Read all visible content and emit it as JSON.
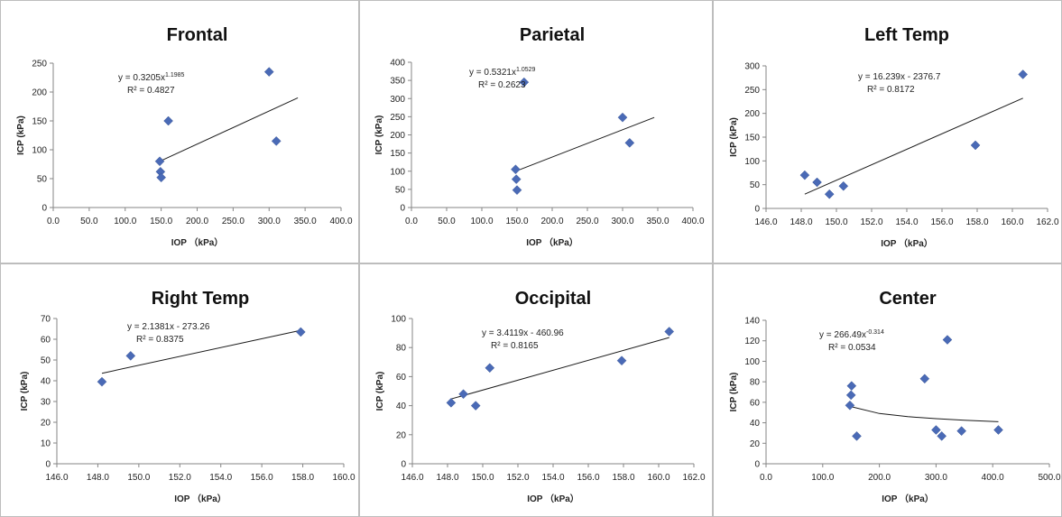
{
  "chart_data": [
    {
      "type": "scatter",
      "title": "Frontal",
      "xlabel": "IOP （kPa）",
      "ylabel": "ICP (kPa)",
      "xlim": [
        0,
        400
      ],
      "ylim": [
        0,
        250
      ],
      "xticks": [
        "0.0",
        "50.0",
        "100.0",
        "150.0",
        "200.0",
        "250.0",
        "300.0",
        "350.0",
        "400.0"
      ],
      "yticks": [
        "0",
        "50",
        "100",
        "150",
        "200",
        "250"
      ],
      "points": [
        [
          148,
          80
        ],
        [
          149,
          62
        ],
        [
          150,
          52
        ],
        [
          160,
          150
        ],
        [
          300,
          235
        ],
        [
          310,
          115
        ]
      ],
      "trendline": {
        "kind": "power",
        "points": [
          [
            148,
            80
          ],
          [
            340,
            190
          ]
        ]
      },
      "equation": "y = 0.3205x",
      "equation_exp": "1.1985",
      "r2": "R² = 0.4827",
      "marker_color": "#4a6ab6"
    },
    {
      "type": "scatter",
      "title": "Parietal",
      "xlabel": "IOP （kPa）",
      "ylabel": "ICP (kPa)",
      "xlim": [
        0,
        400
      ],
      "ylim": [
        0,
        400
      ],
      "xticks": [
        "0.0",
        "50.0",
        "100.0",
        "150.0",
        "200.0",
        "250.0",
        "300.0",
        "350.0",
        "400.0"
      ],
      "yticks": [
        "0",
        "50",
        "100",
        "150",
        "200",
        "250",
        "300",
        "350",
        "400"
      ],
      "points": [
        [
          148,
          105
        ],
        [
          149,
          78
        ],
        [
          150,
          48
        ],
        [
          160,
          345
        ],
        [
          300,
          248
        ],
        [
          310,
          178
        ]
      ],
      "trendline": {
        "kind": "power",
        "points": [
          [
            148,
            100
          ],
          [
            345,
            248
          ]
        ]
      },
      "equation": "y = 0.5321x",
      "equation_exp": "1.0529",
      "r2": "R² = 0.2623",
      "marker_color": "#4a6ab6"
    },
    {
      "type": "scatter",
      "title": "Left Temp",
      "xlabel": "IOP （kPa）",
      "ylabel": "ICP (kPa)",
      "xlim": [
        146,
        162
      ],
      "ylim": [
        0,
        300
      ],
      "xticks": [
        "146.0",
        "148.0",
        "150.0",
        "152.0",
        "154.0",
        "156.0",
        "158.0",
        "160.0",
        "162.0"
      ],
      "yticks": [
        "0",
        "50",
        "100",
        "150",
        "200",
        "250",
        "300"
      ],
      "points": [
        [
          148.2,
          70
        ],
        [
          148.9,
          55
        ],
        [
          149.6,
          30
        ],
        [
          150.4,
          47
        ],
        [
          157.9,
          133
        ],
        [
          160.6,
          282
        ]
      ],
      "trendline": {
        "kind": "linear",
        "points": [
          [
            148.2,
            30
          ],
          [
            160.6,
            232
          ]
        ]
      },
      "equation": "y = 16.239x - 2376.7",
      "equation_exp": "",
      "r2": "R² = 0.8172",
      "marker_color": "#4a6ab6"
    },
    {
      "type": "scatter",
      "title": "Right Temp",
      "xlabel": "IOP （kPa）",
      "ylabel": "ICP (kPa)",
      "xlim": [
        146,
        160
      ],
      "ylim": [
        0,
        70
      ],
      "xticks": [
        "146.0",
        "148.0",
        "150.0",
        "152.0",
        "154.0",
        "156.0",
        "158.0",
        "160.0"
      ],
      "yticks": [
        "0",
        "10",
        "20",
        "30",
        "40",
        "50",
        "60",
        "70"
      ],
      "points": [
        [
          148.2,
          39.5
        ],
        [
          149.6,
          52
        ],
        [
          157.9,
          63.5
        ]
      ],
      "trendline": {
        "kind": "linear",
        "points": [
          [
            148.2,
            43.6
          ],
          [
            157.9,
            64.3
          ]
        ]
      },
      "equation": "y = 2.1381x - 273.26",
      "equation_exp": "",
      "r2": "R² = 0.8375",
      "marker_color": "#4a6ab6"
    },
    {
      "type": "scatter",
      "title": "Occipital",
      "xlabel": "IOP （kPa）",
      "ylabel": "ICP (kPa)",
      "xlim": [
        146,
        162
      ],
      "ylim": [
        0,
        100
      ],
      "xticks": [
        "146.0",
        "148.0",
        "150.0",
        "152.0",
        "154.0",
        "156.0",
        "158.0",
        "160.0",
        "162.0"
      ],
      "yticks": [
        "0",
        "20",
        "40",
        "60",
        "80",
        "100"
      ],
      "points": [
        [
          148.2,
          42
        ],
        [
          148.9,
          48
        ],
        [
          149.6,
          40
        ],
        [
          150.4,
          66
        ],
        [
          157.9,
          71
        ],
        [
          160.6,
          91
        ]
      ],
      "trendline": {
        "kind": "linear",
        "points": [
          [
            148.2,
            44.6
          ],
          [
            160.6,
            86.9
          ]
        ]
      },
      "equation": "y = 3.4119x - 460.96",
      "equation_exp": "",
      "r2": "R² = 0.8165",
      "marker_color": "#4a6ab6"
    },
    {
      "type": "scatter",
      "title": "Center",
      "xlabel": "IOP （kPa）",
      "ylabel": "ICP (kPa)",
      "xlim": [
        0,
        500
      ],
      "ylim": [
        0,
        140
      ],
      "xticks": [
        "0.0",
        "100.0",
        "200.0",
        "300.0",
        "400.0",
        "500.0"
      ],
      "yticks": [
        "0",
        "20",
        "40",
        "60",
        "80",
        "100",
        "120",
        "140"
      ],
      "points": [
        [
          148,
          57
        ],
        [
          150,
          67
        ],
        [
          151,
          76
        ],
        [
          160,
          27
        ],
        [
          280,
          83
        ],
        [
          300,
          33
        ],
        [
          310,
          27
        ],
        [
          320,
          121
        ],
        [
          345,
          32
        ],
        [
          410,
          33
        ]
      ],
      "trendline": {
        "kind": "power",
        "points": [
          [
            148,
            56
          ],
          [
            200,
            49
          ],
          [
            250,
            46
          ],
          [
            300,
            44
          ],
          [
            350,
            42.5
          ],
          [
            410,
            41
          ]
        ]
      },
      "equation": "y = 266.49x",
      "equation_exp": "-0.314",
      "r2": "R² = 0.0534",
      "marker_color": "#4a6ab6"
    }
  ]
}
